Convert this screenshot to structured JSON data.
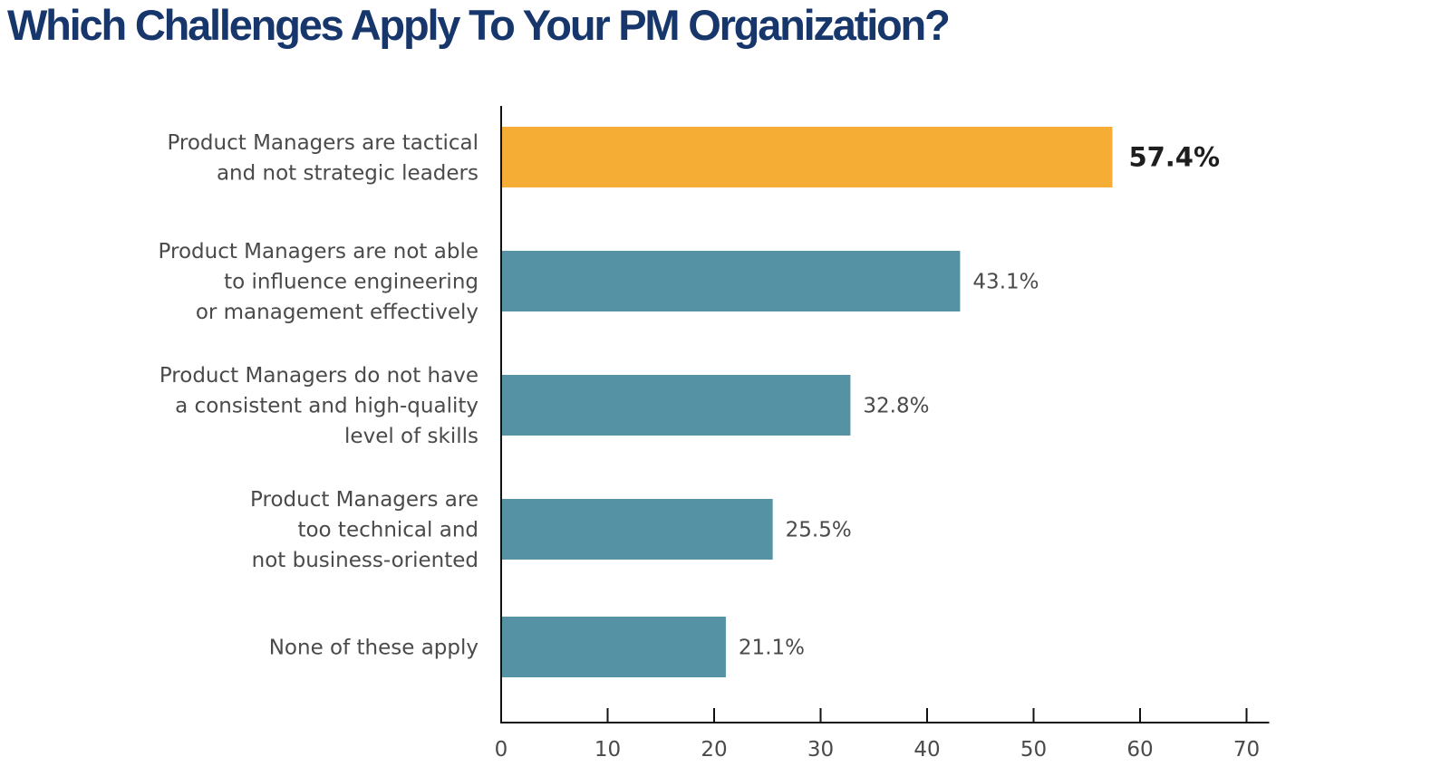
{
  "title": "Which Challenges Apply To Your PM Organization?",
  "colors": {
    "title": "#17366b",
    "highlight_bar": "#f6ad35",
    "bar": "#5592a4",
    "axis": "#111111"
  },
  "chart_data": {
    "type": "bar",
    "orientation": "horizontal",
    "title": "Which Challenges Apply To Your PM Organization?",
    "categories": [
      [
        "Product Managers are tactical",
        "and not strategic leaders"
      ],
      [
        "Product Managers are not able",
        "to influence engineering",
        "or management effectively"
      ],
      [
        "Product Managers do not have",
        "a consistent and high-quality",
        "level of skills"
      ],
      [
        "Product Managers are",
        "too technical and",
        "not business-oriented"
      ],
      [
        "None of these apply"
      ]
    ],
    "values": [
      57.4,
      43.1,
      32.8,
      25.5,
      21.1
    ],
    "value_labels": [
      "57.4%",
      "43.1%",
      "32.8%",
      "25.5%",
      "21.1%"
    ],
    "highlight_index": 0,
    "xlim": [
      0,
      70
    ],
    "xticks": [
      0,
      10,
      20,
      30,
      40,
      50,
      60,
      70
    ],
    "xtick_labels": [
      "0",
      "10",
      "20",
      "30",
      "40",
      "50",
      "60",
      "70"
    ],
    "xlabel": "",
    "ylabel": "",
    "grid": false,
    "legend": "none"
  }
}
